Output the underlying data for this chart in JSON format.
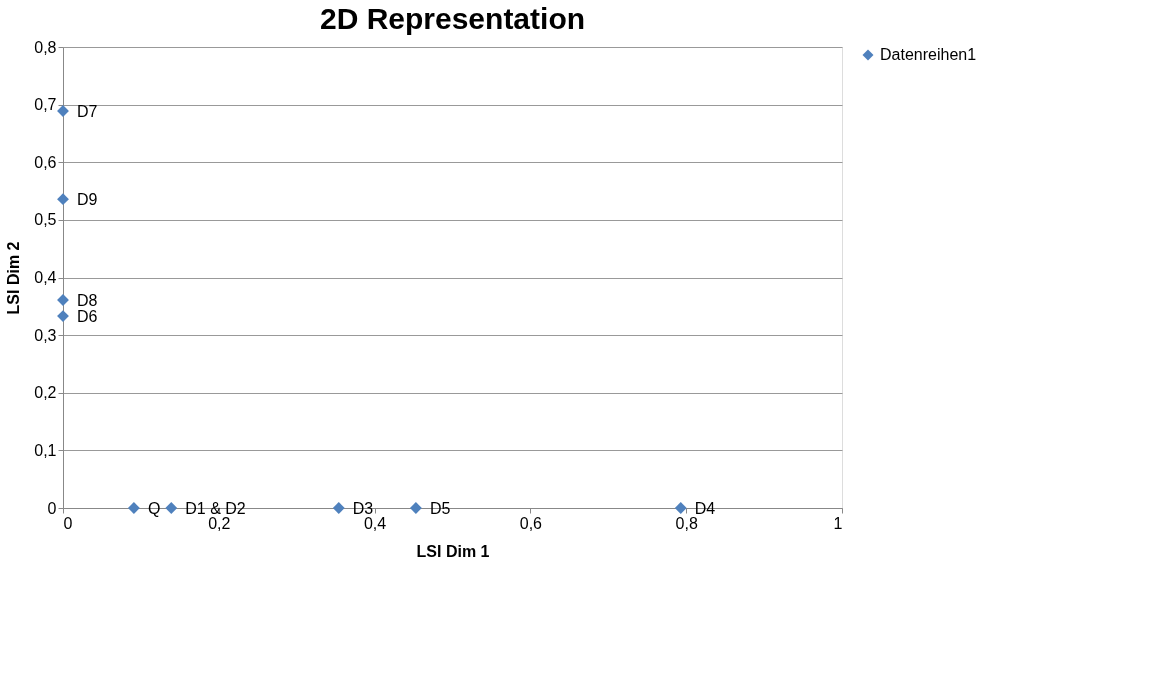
{
  "chart_data": {
    "type": "scatter",
    "title": "2D Representation",
    "xlabel": "LSI Dim 1",
    "ylabel": "LSI Dim 2",
    "x": [
      0,
      0,
      0,
      0,
      0.091,
      0.139,
      0.354,
      0.453,
      0.793
    ],
    "series": [
      {
        "name": "Datenreihen1",
        "color": "#4f81bd",
        "values": [
          0.689,
          0.536,
          0.361,
          0.333,
          0,
          0,
          0,
          0,
          0
        ]
      }
    ],
    "xlim": [
      0,
      1
    ],
    "xticks": [
      {
        "value": 0,
        "label": "0"
      },
      {
        "value": 0.2,
        "label": "0,2"
      },
      {
        "value": 0.4,
        "label": "0,4"
      },
      {
        "value": 0.6,
        "label": "0,6"
      },
      {
        "value": 0.8,
        "label": "0,8"
      },
      {
        "value": 1,
        "label": "1"
      }
    ],
    "ylim": [
      0,
      0.8
    ],
    "yticks": [
      {
        "value": 0,
        "label": "0"
      },
      {
        "value": 0.1,
        "label": "0,1"
      },
      {
        "value": 0.2,
        "label": "0,2"
      },
      {
        "value": 0.3,
        "label": "0,3"
      },
      {
        "value": 0.4,
        "label": "0,4"
      },
      {
        "value": 0.5,
        "label": "0,5"
      },
      {
        "value": 0.6,
        "label": "0,6"
      },
      {
        "value": 0.7,
        "label": "0,7"
      },
      {
        "value": 0.8,
        "label": "0,8"
      }
    ],
    "annotations": [
      {
        "text": "D7",
        "x": 0,
        "y": 0.689
      },
      {
        "text": "D9",
        "x": 0,
        "y": 0.536
      },
      {
        "text": "D8",
        "x": 0,
        "y": 0.361
      },
      {
        "text": "D6",
        "x": 0,
        "y": 0.333
      },
      {
        "text": "Q",
        "x": 0.091,
        "y": 0
      },
      {
        "text": "D1 & D2",
        "x": 0.139,
        "y": 0
      },
      {
        "text": "D3",
        "x": 0.354,
        "y": 0
      },
      {
        "text": "D5",
        "x": 0.453,
        "y": 0
      },
      {
        "text": "D4",
        "x": 0.793,
        "y": 0
      }
    ],
    "grid": "y",
    "legend": "right",
    "marker": "diamond"
  }
}
